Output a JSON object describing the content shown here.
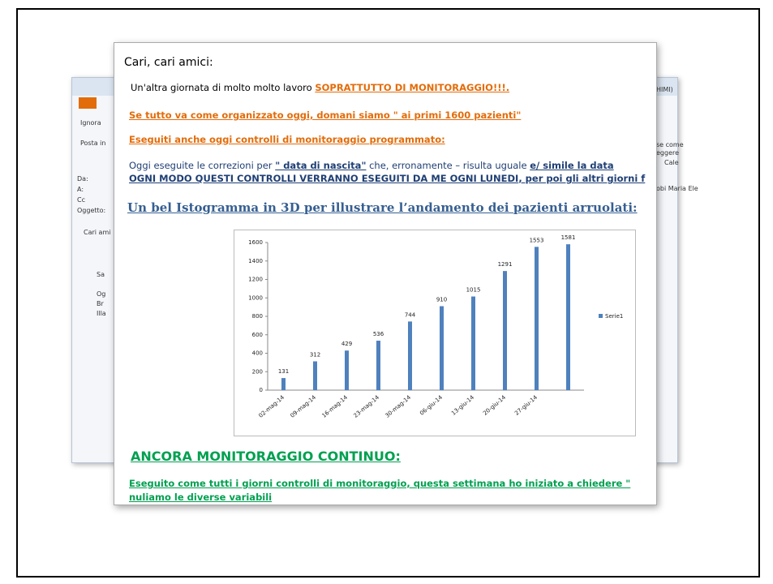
{
  "background_window": {
    "labels": [
      "Ignora",
      "Posta in",
      "Da:",
      "A:",
      "Cc",
      "Oggetto:",
      "Cari ami",
      "Sa",
      "Og",
      "Br",
      "Illa",
      "HIMI)",
      "se come",
      "eggere",
      "Cale",
      "obi Maria Ele"
    ]
  },
  "email": {
    "greeting": "Cari, cari amici:",
    "line1": {
      "text": "Un'altra giornata di molto molto lavoro ",
      "highlight": "SOPRATTUTTO DI MONITORAGGIO!!!."
    },
    "line2": "Se tutto va come organizzato oggi, domani siamo \" ai primi 1600 pazienti\"",
    "line3": "Eseguiti anche oggi controlli di monitoraggio programmato:",
    "line4": {
      "text": "Oggi eseguite le correzioni per ",
      "quote": "\" data di nascita\"",
      "rest": " che, erronamente – risulta uguale ",
      "tail": "e/ simile la data"
    },
    "line5": {
      "caps": "OGNI MODO QUESTI CONTROLLI VERRANNO ESEGUITI DA ME OGNI LUNEDI",
      "rest": ", per poi gli altri giorni f"
    },
    "chart_heading": "Un bel Istogramma in 3D per illustrare l’andamento dei pazienti arruolati:",
    "chart": {
      "type": "bar",
      "categories": [
        "02-mag-14",
        "09-mag-14",
        "16-mag-14",
        "23-mag-14",
        "30-mag-14",
        "06-giu-14",
        "13-giu-14",
        "20-giu-14",
        "27-giu-14",
        null
      ],
      "series": [
        {
          "name": "Serie1",
          "color": "#4f81bd",
          "values": [
            131,
            312,
            429,
            536,
            744,
            910,
            1015,
            1291,
            1553,
            1581
          ]
        }
      ],
      "ylim": [
        0,
        1600
      ],
      "yticks": [
        0,
        200,
        400,
        600,
        800,
        1000,
        1200,
        1400,
        1600
      ],
      "legend": "right"
    },
    "section_heading": "ANCORA MONITORAGGIO CONTINUO:",
    "line6": "Eseguito come tutti i giorni controlli di monitoraggio, questa settimana ho iniziato a chiedere \"",
    "line7": "nuliamo le diverse variabili"
  }
}
